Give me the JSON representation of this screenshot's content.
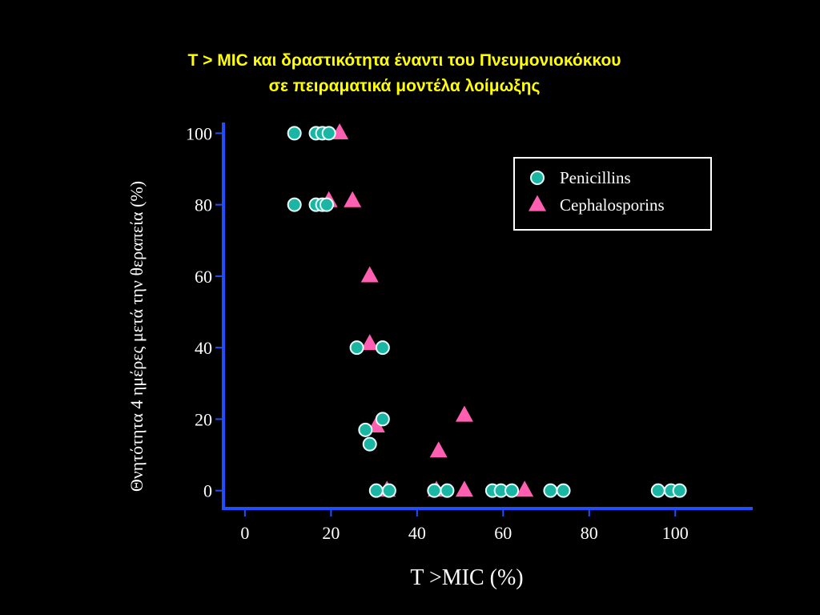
{
  "header": {
    "title_line1": "T > MIC και δραστικότητα έναντι του Πνευμονιοκόκκου",
    "title_line2": "σε πειραματικά μοντέλα λοίμωξης"
  },
  "colors": {
    "background": "#000000",
    "title": "#ffff00",
    "axis": "#1f4fff",
    "penicillins_fill": "#1bb5a4",
    "penicillins_stroke": "#e8fffb",
    "cephalosporins_fill": "#ff5fb0",
    "text": "#ffffff"
  },
  "chart_data": {
    "type": "scatter",
    "xlabel": "T >MIC (%)",
    "ylabel": "Θνητότητα 4 ημέρες μετά την θεραπεία (%)",
    "xlim": [
      -5,
      118
    ],
    "ylim": [
      -5,
      103
    ],
    "x_ticks": [
      0,
      20,
      40,
      60,
      80,
      100
    ],
    "y_ticks": [
      0,
      20,
      40,
      60,
      80,
      100
    ],
    "grid": false,
    "legend_position": "top-right",
    "series": [
      {
        "name": "Penicillins",
        "marker": "circle",
        "points": [
          [
            11.5,
            100
          ],
          [
            16.5,
            100
          ],
          [
            18,
            100
          ],
          [
            19.5,
            100
          ],
          [
            11.5,
            80
          ],
          [
            16.5,
            80
          ],
          [
            18,
            80
          ],
          [
            19,
            80
          ],
          [
            26,
            40
          ],
          [
            32,
            40
          ],
          [
            28,
            17
          ],
          [
            29,
            13
          ],
          [
            32,
            20
          ],
          [
            30.5,
            0
          ],
          [
            33.5,
            0
          ],
          [
            44,
            0
          ],
          [
            47,
            0
          ],
          [
            57.5,
            0
          ],
          [
            59.5,
            0
          ],
          [
            62,
            0
          ],
          [
            71,
            0
          ],
          [
            74,
            0
          ],
          [
            96,
            0
          ],
          [
            99,
            0
          ],
          [
            101,
            0
          ]
        ]
      },
      {
        "name": "Cephalosporins",
        "marker": "triangle",
        "points": [
          [
            22,
            100
          ],
          [
            19.5,
            81
          ],
          [
            25,
            81
          ],
          [
            29,
            60
          ],
          [
            29,
            41
          ],
          [
            30.5,
            18
          ],
          [
            45,
            11
          ],
          [
            51,
            21
          ],
          [
            33,
            0
          ],
          [
            44.5,
            0
          ],
          [
            51,
            0
          ],
          [
            65,
            0
          ]
        ]
      }
    ]
  }
}
